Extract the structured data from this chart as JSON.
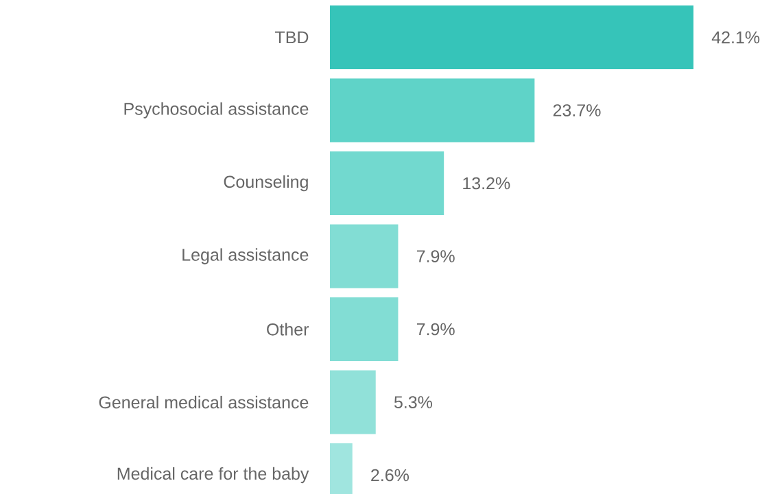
{
  "chart_data": {
    "type": "bar",
    "orientation": "horizontal",
    "data_labels": true,
    "categories": [
      "TBD",
      "Psychosocial assistance",
      "Counseling",
      "Legal assistance",
      "Other",
      "General medical assistance",
      "Medical care for the baby"
    ],
    "values": [
      42.1,
      23.7,
      13.2,
      7.9,
      7.9,
      5.3,
      2.6
    ],
    "value_labels": [
      "42.1%",
      "23.7%",
      "13.2%",
      "7.9%",
      "7.9%",
      "5.3%",
      "2.6%"
    ],
    "colors": [
      "#36c4b9",
      "#5fd3c8",
      "#72d9cf",
      "#82ddd4",
      "#82ddd4",
      "#91e1d9",
      "#a0e5df"
    ]
  }
}
